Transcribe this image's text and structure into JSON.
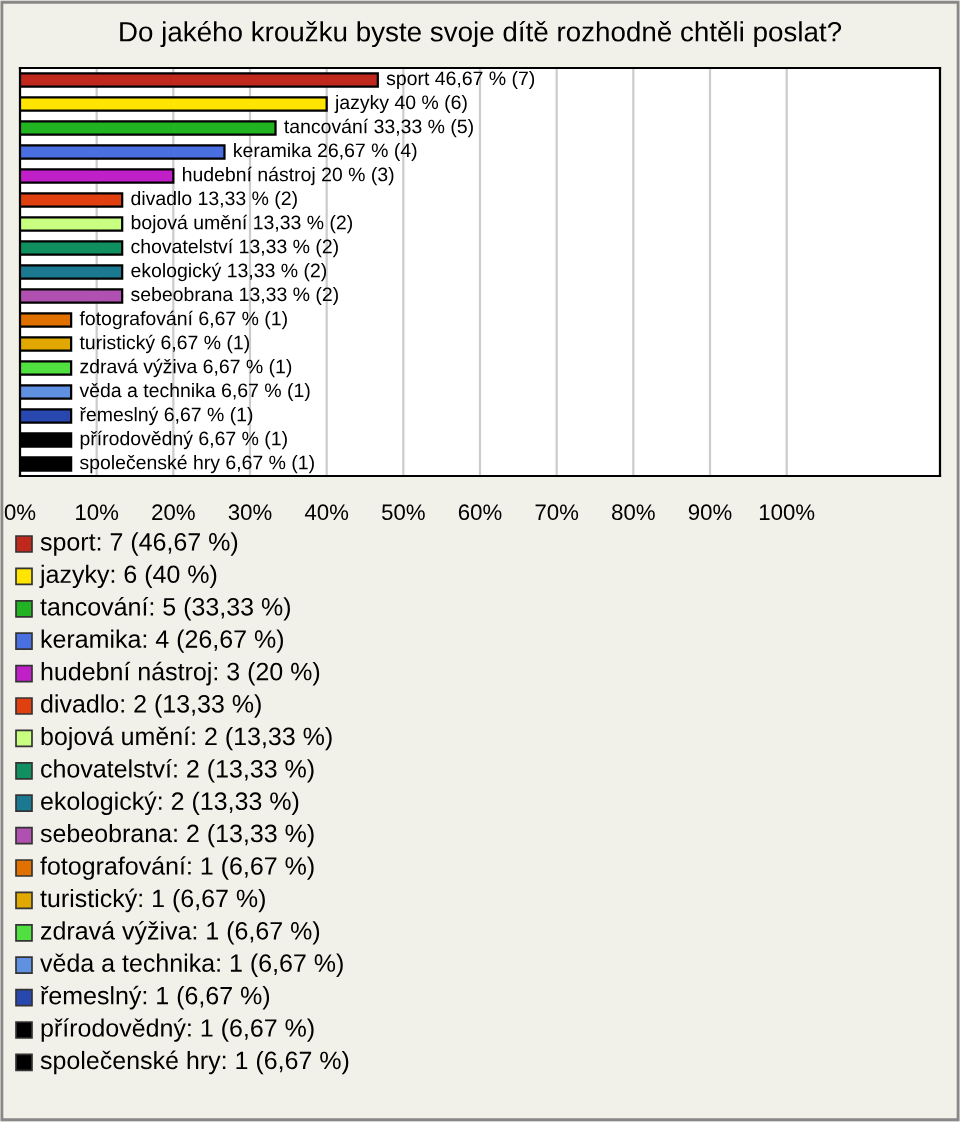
{
  "chart_data": {
    "type": "bar",
    "orientation": "horizontal",
    "title": "Do jakého kroužku byste svoje dítě rozhodně chtěli poslat?",
    "categories": [
      null,
      null,
      null,
      null,
      null,
      null,
      null,
      null,
      null,
      null,
      null,
      null,
      null,
      null,
      null,
      null,
      null
    ],
    "values": [
      46.67,
      40,
      33.33,
      26.67,
      20,
      13.33,
      13.33,
      13.33,
      13.33,
      13.33,
      6.67,
      6.67,
      6.67,
      6.67,
      6.67,
      6.67,
      6.67
    ],
    "value_labels": [
      "sport 46,67 % (7)",
      "jazyky 40 % (6)",
      "tancování 33,33 % (5)",
      "keramika 26,67 % (4)",
      "hudební nástroj 20 % (3)",
      "divadlo 13,33 % (2)",
      "bojová umění 13,33 % (2)",
      "chovatelství 13,33 % (2)",
      "ekologický 13,33 % (2)",
      "sebeobrana 13,33 % (2)",
      "fotografování 6,67 % (1)",
      "turistický 6,67 % (1)",
      "zdravá výživa 6,67 % (1)",
      "věda a technika 6,67 % (1)",
      "řemeslný 6,67 % (1)",
      "přírodovědný 6,67 % (1)",
      "společenské hry 6,67 % (1)"
    ],
    "colors": [
      "#c0281e",
      "#ffe500",
      "#22b322",
      "#4a6fe0",
      "#c020c8",
      "#e04010",
      "#c8ff80",
      "#109060",
      "#1a7890",
      "#b050b0",
      "#e07000",
      "#e0a800",
      "#50e040",
      "#6090e0",
      "#2848b0",
      "#000000",
      "#000000"
    ],
    "annotations": [
      "sport: 7 (46,67 %)",
      "jazyky: 6 (40 %)",
      "tancování: 5 (33,33 %)",
      "keramika: 4 (26,67 %)",
      "hudební nástroj: 3 (20 %)",
      "divadlo: 2 (13,33 %)",
      "bojová umění: 2 (13,33 %)",
      "chovatelství: 2 (13,33 %)",
      "ekologický: 2 (13,33 %)",
      "sebeobrana: 2 (13,33 %)",
      "fotografování: 1 (6,67 %)",
      "turistický: 1 (6,67 %)",
      "zdravá výživa: 1 (6,67 %)",
      "věda a technika: 1 (6,67 %)",
      "řemeslný: 1 (6,67 %)",
      "přírodovědný: 1 (6,67 %)",
      "společenské hry: 1 (6,67 %)"
    ],
    "xlim": [
      0,
      120
    ],
    "xticks": [
      {
        "value": 0,
        "label": "0%"
      },
      {
        "value": 10,
        "label": "10%"
      },
      {
        "value": 20,
        "label": "20%"
      },
      {
        "value": 30,
        "label": "30%"
      },
      {
        "value": 40,
        "label": "40%"
      },
      {
        "value": 50,
        "label": "50%"
      },
      {
        "value": 60,
        "label": "60%"
      },
      {
        "value": 70,
        "label": "70%"
      },
      {
        "value": 80,
        "label": "80%"
      },
      {
        "value": 90,
        "label": "90%"
      },
      {
        "value": 100,
        "label": "100%"
      }
    ],
    "grid": "x"
  }
}
